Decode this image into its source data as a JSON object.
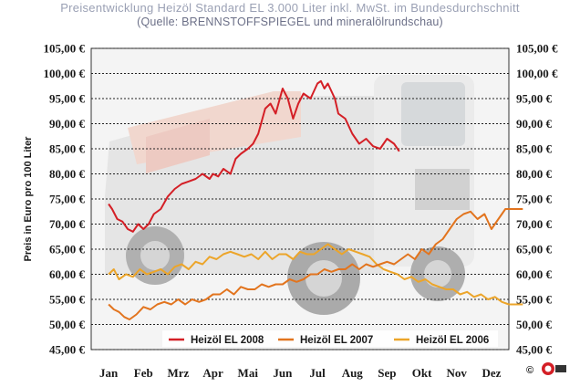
{
  "header": {
    "title": "Preisentwicklung Heizöl Standard EL 3.000 Liter inkl. MwSt. im Bundesdurchschnitt",
    "subtitle": "(Quelle: BRENNSTOFFSPIEGEL und mineralölrundschau)"
  },
  "copyright": "©",
  "colors": {
    "s2008": "#d41f26",
    "s2007": "#e2741e",
    "s2006": "#eca52a",
    "grid": "#222222",
    "plot_bg": "#f3f3f3"
  },
  "chart_data": {
    "type": "line",
    "title": "Preisentwicklung Heizöl Standard EL 3.000 Liter inkl. MwSt. im Bundesdurchschnitt",
    "subtitle": "(Quelle: BRENNSTOFFSPIEGEL und mineralölrundschau)",
    "xlabel": "",
    "ylabel": "Preis in Euro pro 100 Liter",
    "ylim": [
      45,
      105
    ],
    "yticks": [
      "45,00 €",
      "50,00 €",
      "55,00 €",
      "60,00 €",
      "65,00 €",
      "70,00 €",
      "75,00 €",
      "80,00 €",
      "85,00 €",
      "90,00 €",
      "95,00 €",
      "100,00 €",
      "105,00 €"
    ],
    "categories": [
      "Jan",
      "Feb",
      "Mrz",
      "Apr",
      "Mai",
      "Jun",
      "Jul",
      "Aug",
      "Sep",
      "Okt",
      "Nov",
      "Dez"
    ],
    "grid": true,
    "legend_position": "bottom-inside",
    "series": [
      {
        "name": "Heizöl EL 2008",
        "color": "#d41f26",
        "x": [
          0,
          0.1,
          0.25,
          0.4,
          0.55,
          0.7,
          0.85,
          1.0,
          1.15,
          1.3,
          1.5,
          1.7,
          1.9,
          2.1,
          2.3,
          2.5,
          2.7,
          2.9,
          3.0,
          3.15,
          3.3,
          3.5,
          3.65,
          3.8,
          4.0,
          4.15,
          4.3,
          4.5,
          4.65,
          4.8,
          5.0,
          5.15,
          5.3,
          5.45,
          5.6,
          5.8,
          6.0,
          6.1,
          6.2,
          6.3,
          6.5,
          6.6,
          6.8,
          7.0,
          7.2,
          7.4,
          7.6,
          7.8,
          8.0,
          8.2,
          8.35
        ],
        "values": [
          74,
          73,
          71,
          70.5,
          69,
          68.5,
          70,
          69,
          70,
          72,
          73,
          75.5,
          77,
          78,
          78.5,
          79,
          80,
          79,
          80,
          79.5,
          81,
          80,
          83,
          84,
          85,
          86,
          88,
          93,
          94,
          92,
          97,
          95,
          91,
          94,
          96,
          95,
          98,
          98.5,
          97,
          98,
          95,
          92,
          91,
          88,
          86,
          87,
          85.5,
          85,
          87,
          86,
          84.5
        ]
      },
      {
        "name": "Heizöl EL 2007",
        "color": "#e2741e",
        "x": [
          0,
          0.15,
          0.3,
          0.45,
          0.6,
          0.8,
          1.0,
          1.2,
          1.4,
          1.6,
          1.8,
          2.0,
          2.2,
          2.4,
          2.6,
          2.8,
          3.0,
          3.2,
          3.4,
          3.6,
          3.8,
          4.0,
          4.2,
          4.4,
          4.6,
          4.8,
          5.0,
          5.2,
          5.4,
          5.6,
          5.8,
          6.0,
          6.2,
          6.4,
          6.6,
          6.8,
          7.0,
          7.2,
          7.4,
          7.6,
          7.8,
          8.0,
          8.2,
          8.4,
          8.6,
          8.8,
          9.0,
          9.2,
          9.4,
          9.6,
          9.8,
          10.0,
          10.2,
          10.4,
          10.6,
          10.8,
          11.0,
          11.2,
          11.4,
          11.6,
          11.9
        ],
        "values": [
          54,
          53,
          52.5,
          51.5,
          51,
          52,
          53.5,
          53,
          54,
          54.5,
          54,
          55,
          54,
          55,
          54.5,
          55,
          56,
          56,
          57,
          56,
          57.5,
          57,
          57,
          58,
          57.5,
          58,
          58,
          59,
          58.5,
          59,
          60,
          60,
          61,
          60.5,
          61,
          61,
          62,
          61,
          62,
          61.5,
          62,
          62.5,
          62,
          63,
          64,
          63,
          65,
          64,
          66,
          67,
          69,
          71,
          72,
          72.5,
          71,
          72,
          69,
          71,
          73,
          73,
          73
        ]
      },
      {
        "name": "Heizöl EL 2006",
        "color": "#eca52a",
        "x": [
          0,
          0.15,
          0.3,
          0.5,
          0.7,
          0.9,
          1.1,
          1.3,
          1.5,
          1.7,
          1.9,
          2.1,
          2.3,
          2.5,
          2.7,
          2.9,
          3.1,
          3.3,
          3.5,
          3.7,
          3.9,
          4.1,
          4.3,
          4.5,
          4.7,
          4.9,
          5.1,
          5.3,
          5.5,
          5.7,
          5.9,
          6.1,
          6.3,
          6.5,
          6.7,
          6.9,
          7.1,
          7.3,
          7.5,
          7.7,
          7.9,
          8.1,
          8.3,
          8.5,
          8.7,
          8.9,
          9.1,
          9.3,
          9.5,
          9.7,
          9.9,
          10.1,
          10.3,
          10.5,
          10.7,
          10.9,
          11.1,
          11.3,
          11.5,
          11.7,
          11.9
        ],
        "values": [
          60,
          61,
          59,
          60,
          59.5,
          61,
          60,
          60.5,
          61,
          60,
          61.5,
          62,
          61,
          62.5,
          62,
          63.5,
          63,
          64,
          64.5,
          64,
          63.5,
          64,
          63,
          64.5,
          63,
          64,
          64,
          63,
          64.5,
          64,
          64,
          65,
          66,
          65,
          64,
          65,
          64.5,
          64,
          63.5,
          62,
          61,
          60.5,
          60,
          59,
          59.5,
          58.5,
          59,
          58,
          57.5,
          57,
          57,
          56,
          56.5,
          55.5,
          56,
          55,
          55.5,
          54.5,
          54,
          54,
          54
        ]
      }
    ]
  }
}
